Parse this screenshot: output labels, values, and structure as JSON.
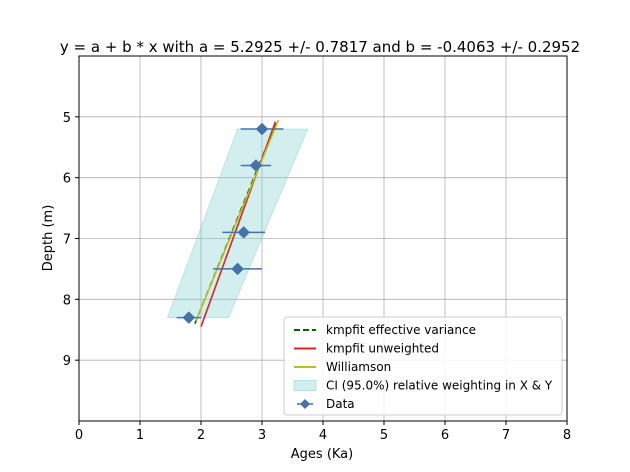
{
  "chart_data": {
    "type": "scatter",
    "title": "y = a + b * x with a = 5.2925 +/- 0.7817 and b = -0.4063 +/- 0.2952",
    "xlabel": "Ages (Ka)",
    "ylabel": "Depth (m)",
    "xlim": [
      0,
      8
    ],
    "ylim": [
      10,
      4
    ],
    "y_inverted": true,
    "grid": true,
    "legend_position": "lower-right",
    "x_ticks": [
      "0",
      "1",
      "2",
      "3",
      "4",
      "5",
      "6",
      "7",
      "8"
    ],
    "y_ticks": [
      "5",
      "6",
      "7",
      "8",
      "9"
    ],
    "series": [
      {
        "name": "kmpfit effective variance",
        "kind": "line",
        "style": "dashed",
        "color": "#006400",
        "x": [
          1.9,
          3.25
        ],
        "y": [
          8.4,
          5.05
        ]
      },
      {
        "name": "kmpfit unweighted",
        "kind": "line",
        "style": "solid",
        "color": "#d62728",
        "x": [
          2.0,
          3.22
        ],
        "y": [
          8.45,
          5.08
        ]
      },
      {
        "name": "Williamson",
        "kind": "line",
        "style": "solid",
        "color": "#bcbd22",
        "x": [
          1.92,
          3.27
        ],
        "y": [
          8.35,
          5.05
        ]
      },
      {
        "name": "CI (95.0%) relative weighting in X & Y",
        "kind": "band",
        "color": "#7fcdcd",
        "y": [
          5.2,
          8.3
        ],
        "x_left": [
          2.6,
          1.45
        ],
        "x_right": [
          3.75,
          2.45
        ]
      },
      {
        "name": "Data",
        "kind": "points",
        "color": "#4572a7",
        "x": [
          3.0,
          2.9,
          2.7,
          2.6,
          1.8
        ],
        "y": [
          5.2,
          5.8,
          6.9,
          7.5,
          8.3
        ],
        "x_err": [
          0.35,
          0.25,
          0.35,
          0.4,
          0.2
        ]
      }
    ]
  }
}
